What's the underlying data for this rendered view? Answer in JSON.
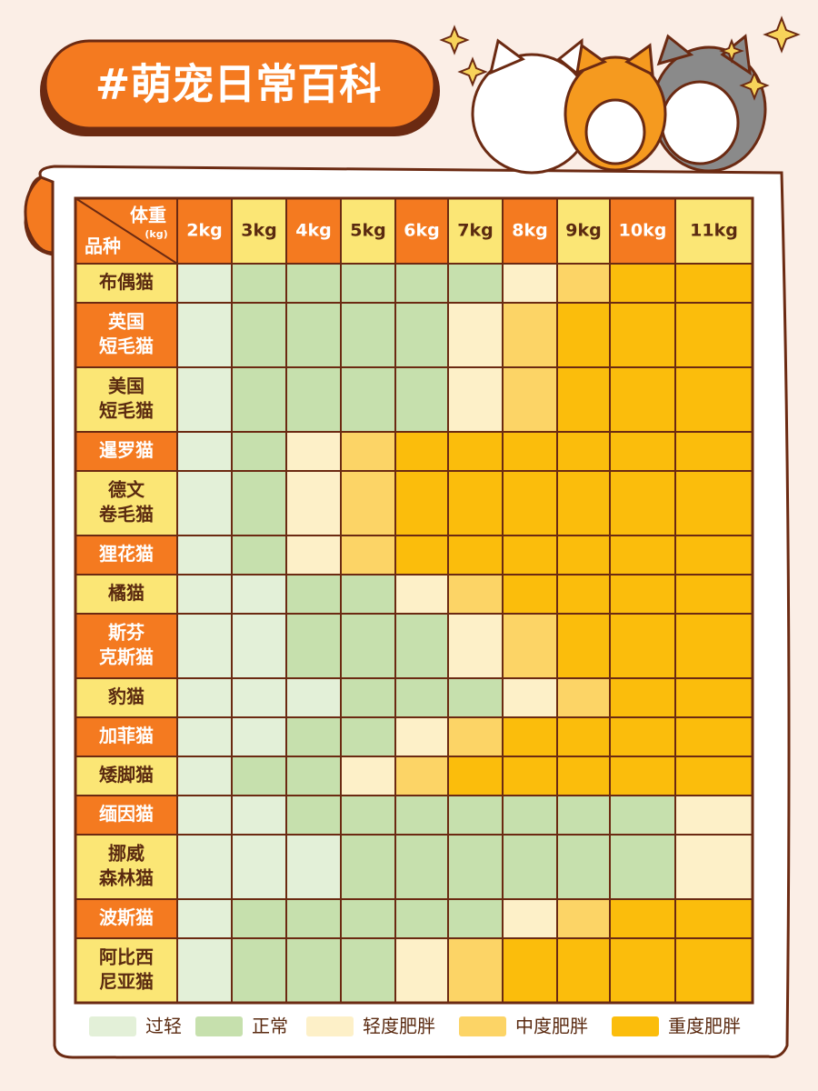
{
  "header": {
    "title": "#萌宠日常百科"
  },
  "table": {
    "corner": {
      "weight": "体重",
      "unit": "(kg)",
      "breed": "品种"
    },
    "columns": [
      "2kg",
      "3kg",
      "4kg",
      "5kg",
      "6kg",
      "7kg",
      "8kg",
      "9kg",
      "10kg",
      "11kg"
    ],
    "rows": [
      {
        "breed": [
          "布偶猫"
        ],
        "levels": [
          0,
          1,
          1,
          1,
          1,
          1,
          2,
          3,
          4,
          4
        ]
      },
      {
        "breed": [
          "英国",
          "短毛猫"
        ],
        "levels": [
          0,
          1,
          1,
          1,
          1,
          2,
          3,
          4,
          4,
          4
        ]
      },
      {
        "breed": [
          "美国",
          "短毛猫"
        ],
        "levels": [
          0,
          1,
          1,
          1,
          1,
          2,
          3,
          4,
          4,
          4
        ]
      },
      {
        "breed": [
          "暹罗猫"
        ],
        "levels": [
          0,
          1,
          2,
          3,
          4,
          4,
          4,
          4,
          4,
          4
        ]
      },
      {
        "breed": [
          "德文",
          "卷毛猫"
        ],
        "levels": [
          0,
          1,
          2,
          3,
          4,
          4,
          4,
          4,
          4,
          4
        ]
      },
      {
        "breed": [
          "狸花猫"
        ],
        "levels": [
          0,
          1,
          2,
          3,
          4,
          4,
          4,
          4,
          4,
          4
        ]
      },
      {
        "breed": [
          "橘猫"
        ],
        "levels": [
          0,
          0,
          1,
          1,
          2,
          3,
          4,
          4,
          4,
          4
        ]
      },
      {
        "breed": [
          "斯芬",
          "克斯猫"
        ],
        "levels": [
          0,
          0,
          1,
          1,
          1,
          2,
          3,
          4,
          4,
          4
        ]
      },
      {
        "breed": [
          "豹猫"
        ],
        "levels": [
          0,
          0,
          0,
          1,
          1,
          1,
          2,
          3,
          4,
          4
        ]
      },
      {
        "breed": [
          "加菲猫"
        ],
        "levels": [
          0,
          0,
          1,
          1,
          2,
          3,
          4,
          4,
          4,
          4
        ]
      },
      {
        "breed": [
          "矮脚猫"
        ],
        "levels": [
          0,
          1,
          1,
          2,
          3,
          4,
          4,
          4,
          4,
          4
        ]
      },
      {
        "breed": [
          "缅因猫"
        ],
        "levels": [
          0,
          0,
          1,
          1,
          1,
          1,
          1,
          1,
          1,
          2
        ]
      },
      {
        "breed": [
          "挪威",
          "森林猫"
        ],
        "levels": [
          0,
          0,
          0,
          1,
          1,
          1,
          1,
          1,
          1,
          2
        ]
      },
      {
        "breed": [
          "波斯猫"
        ],
        "levels": [
          0,
          1,
          1,
          1,
          1,
          1,
          2,
          3,
          4,
          4
        ]
      },
      {
        "breed": [
          "阿比西",
          "尼亚猫"
        ],
        "levels": [
          0,
          1,
          1,
          1,
          2,
          3,
          4,
          4,
          4,
          4
        ]
      }
    ]
  },
  "legend": [
    {
      "label": "过轻",
      "color": "#e3f0d8"
    },
    {
      "label": "正常",
      "color": "#c6e0ad"
    },
    {
      "label": "轻度肥胖",
      "color": "#fdf0c8"
    },
    {
      "label": "中度肥胖",
      "color": "#fcd466"
    },
    {
      "label": "重度肥胖",
      "color": "#fbbd0c"
    }
  ]
}
